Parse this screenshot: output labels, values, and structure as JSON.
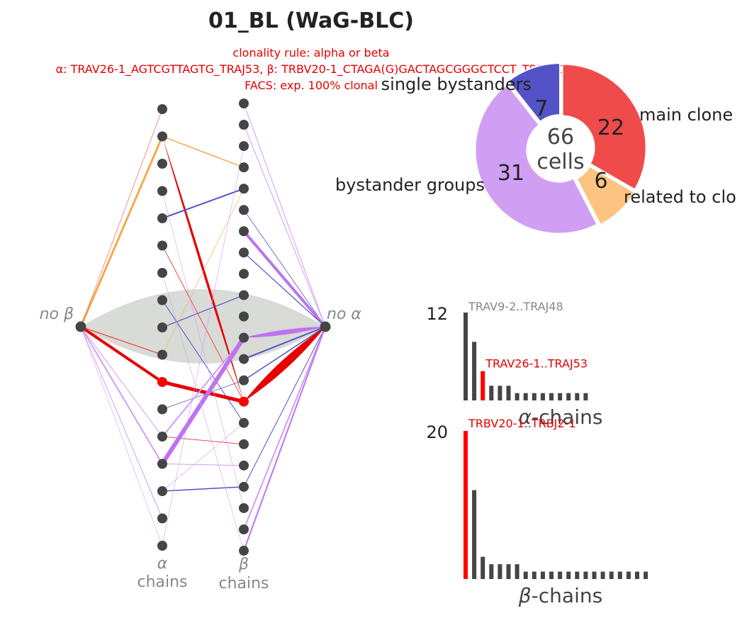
{
  "header": {
    "title": "01_BL (WaG-BLC)",
    "rule": "clonality rule: alpha or beta",
    "chains": "α: TRAV26-1_AGTCGTTAGTG_TRAJ53, β: TRBV20-1_CTAGA(G)GACTAGCGGGCTCCT_TRBJ2-1",
    "facs": "FACS: exp. 100% clonal"
  },
  "colors": {
    "main": "#ef4b4b",
    "main_dark": "#e60000",
    "related": "#fdc380",
    "related_line": "#f6a94c",
    "groups": "#d09ff4",
    "groups_line": "#bf72f0",
    "single": "#5352c7",
    "node": "#454545",
    "node_red": "#ff0000",
    "gray_text": "#888888",
    "nochain_fill": "#d6d9d4"
  },
  "chart_data": [
    {
      "type": "network",
      "labels": {
        "no_beta": "no β",
        "no_alpha": "no α",
        "alpha_greek": "α",
        "alpha_word": "chains",
        "beta_greek": "β",
        "beta_word": "chains"
      },
      "alpha_nodes": 17,
      "beta_nodes": 22,
      "main_alpha_index": 10,
      "main_beta_index": 14,
      "edges": [
        {
          "from": "nb",
          "to": "a1",
          "color": "related_line",
          "w": 3
        },
        {
          "from": "nb",
          "to": "a0",
          "color": "main",
          "w": 0.6
        },
        {
          "from": "nb",
          "to": "a10",
          "color": "main_dark",
          "w": 4
        },
        {
          "from": "nb",
          "to": "a9",
          "color": "main",
          "w": 1.4
        },
        {
          "from": "nb",
          "to": "a13",
          "color": "groups",
          "w": 2
        },
        {
          "from": "nb",
          "to": "a12",
          "color": "groups",
          "w": 1
        },
        {
          "from": "nb",
          "to": "a15",
          "color": "groups",
          "w": 1
        },
        {
          "from": "nb",
          "to": "a16",
          "color": "groups",
          "w": 0.6
        },
        {
          "from": "a1",
          "to": "b3",
          "color": "related_line",
          "w": 1.5
        },
        {
          "from": "a1",
          "to": "b14",
          "color": "main_dark",
          "w": 7
        },
        {
          "from": "a4",
          "to": "b4",
          "color": "single",
          "w": 2
        },
        {
          "from": "a5",
          "to": "b14",
          "color": "main",
          "w": 1
        },
        {
          "from": "a7",
          "to": "b15",
          "color": "single",
          "w": 1
        },
        {
          "from": "a8",
          "to": "b9",
          "color": "single",
          "w": 1.2
        },
        {
          "from": "a9",
          "to": "b4",
          "color": "related_line",
          "w": 0.6
        },
        {
          "from": "a10",
          "to": "b14",
          "color": "main_dark",
          "w": 5
        },
        {
          "from": "a11",
          "to": "b13",
          "color": "single",
          "w": 0.8
        },
        {
          "from": "a12",
          "to": "b11",
          "color": "groups",
          "w": 2
        },
        {
          "from": "a12",
          "to": "b16",
          "color": "main",
          "w": 1
        },
        {
          "from": "a13",
          "to": "b11",
          "color": "groups_line",
          "w": 6
        },
        {
          "from": "a13",
          "to": "b17",
          "color": "groups",
          "w": 1
        },
        {
          "from": "a14",
          "to": "b18",
          "color": "single",
          "w": 1.5
        },
        {
          "from": "a14",
          "to": "b15",
          "color": "groups",
          "w": 0.6
        },
        {
          "from": "a6",
          "to": "b21",
          "color": "groups",
          "w": 0.6
        },
        {
          "from": "a3",
          "to": "b19",
          "color": "groups",
          "w": 0.6
        },
        {
          "from": "a16",
          "to": "b2",
          "color": "groups",
          "w": 0.6
        },
        {
          "from": "b0",
          "to": "na",
          "color": "groups",
          "w": 1
        },
        {
          "from": "b1",
          "to": "na",
          "color": "groups",
          "w": 1
        },
        {
          "from": "b5",
          "to": "na",
          "color": "single",
          "w": 0.8
        },
        {
          "from": "b6",
          "to": "na",
          "color": "groups_line",
          "w": 4
        },
        {
          "from": "b7",
          "to": "na",
          "color": "single",
          "w": 1.2
        },
        {
          "from": "b11",
          "to": "na",
          "color": "groups_line",
          "w": 14
        },
        {
          "from": "b12",
          "to": "na",
          "color": "single",
          "w": 2
        },
        {
          "from": "b13",
          "to": "na",
          "color": "single",
          "w": 1.5
        },
        {
          "from": "b14",
          "to": "na",
          "color": "main_dark",
          "w": 24
        },
        {
          "from": "b18",
          "to": "na",
          "color": "single",
          "w": 1
        },
        {
          "from": "b20",
          "to": "na",
          "color": "groups",
          "w": 2
        },
        {
          "from": "b21",
          "to": "na",
          "color": "groups_line",
          "w": 2
        }
      ]
    },
    {
      "type": "pie",
      "center_text": [
        "66",
        "cells"
      ],
      "slices": [
        {
          "label": "main clone",
          "value": 22,
          "color": "main"
        },
        {
          "label": "related to clo",
          "value": 6,
          "color": "related"
        },
        {
          "label": "bystander groups",
          "value": 31,
          "color": "groups"
        },
        {
          "label": "single bystanders",
          "value": 7,
          "color": "single"
        }
      ]
    },
    {
      "type": "bar",
      "xlabel_greek": "α",
      "xlabel_word": "-chains",
      "ymax_label": "12",
      "ymax": 12,
      "values": [
        12,
        8,
        4,
        2,
        2,
        2,
        1,
        1,
        1,
        1,
        1,
        1,
        1,
        1,
        1
      ],
      "highlight_index": 2,
      "annot_top": "TRAV9-2..TRAJ48",
      "annot_highlight": "TRAV26-1..TRAJ53"
    },
    {
      "type": "bar",
      "xlabel_greek": "β",
      "xlabel_word": "-chains",
      "ymax_label": "20",
      "ymax": 20,
      "values": [
        20,
        12,
        3,
        2,
        2,
        2,
        2,
        1,
        1,
        1,
        1,
        1,
        1,
        1,
        1,
        1,
        1,
        1,
        1,
        1,
        1,
        1
      ],
      "highlight_index": 0,
      "annot_highlight": "TRBV20-1..TRBJ2-1"
    }
  ]
}
